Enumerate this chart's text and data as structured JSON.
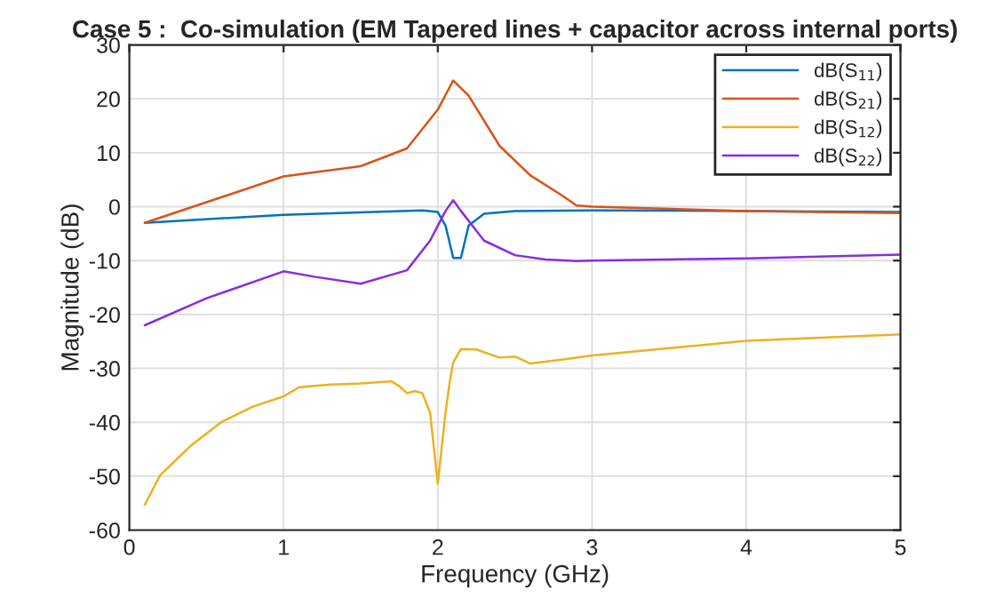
{
  "chart_data": {
    "type": "line",
    "title": "Case 5 :  Co-simulation (EM Tapered lines + capacitor across internal ports)",
    "xlabel": "Frequency (GHz)",
    "ylabel": "Magnitude (dB)",
    "xlim": [
      0,
      5
    ],
    "ylim": [
      -60,
      30
    ],
    "xticks": [
      0,
      1,
      2,
      3,
      4,
      5
    ],
    "yticks": [
      -60,
      -50,
      -40,
      -30,
      -20,
      -10,
      0,
      10,
      20,
      30
    ],
    "grid": true,
    "legend": "top right",
    "series": [
      {
        "name": "dB(S$_{11}$)",
        "color": "#0072bd",
        "x": [
          0.1,
          1,
          1.9,
          2.0,
          2.05,
          2.1,
          2.15,
          2.2,
          2.3,
          2.5,
          3,
          4,
          5
        ],
        "values": [
          -3,
          -1.5,
          -0.7,
          -1,
          -3.5,
          -9.5,
          -9.5,
          -3.5,
          -1.3,
          -0.8,
          -0.7,
          -0.8,
          -1
        ]
      },
      {
        "name": "dB(S$_{21}$)",
        "color": "#d95319",
        "x": [
          0.1,
          1,
          1.5,
          1.8,
          2.0,
          2.1,
          2.2,
          2.4,
          2.6,
          2.8,
          2.9,
          3,
          4,
          5
        ],
        "values": [
          -3,
          5.6,
          7.5,
          10.8,
          18,
          23.4,
          20.6,
          11.3,
          5.8,
          2.2,
          0.2,
          0,
          -0.8,
          -1.2
        ]
      },
      {
        "name": "dB(S$_{12}$)",
        "color": "#edb120",
        "x": [
          0.1,
          0.2,
          0.4,
          0.6,
          0.8,
          1.0,
          1.1,
          1.3,
          1.5,
          1.7,
          1.75,
          1.8,
          1.85,
          1.9,
          1.95,
          2.0,
          2.05,
          2.08,
          2.1,
          2.15,
          2.25,
          2.4,
          2.5,
          2.6,
          2.8,
          3,
          4,
          5
        ],
        "values": [
          -55.3,
          -49.8,
          -44.3,
          -39.9,
          -37.1,
          -35.2,
          -33.5,
          -33,
          -32.8,
          -32.4,
          -33.3,
          -34.6,
          -34.2,
          -34.6,
          -38.2,
          -51.4,
          -38.2,
          -32,
          -28.9,
          -26.4,
          -26.5,
          -28,
          -27.8,
          -29.1,
          -28.4,
          -27.6,
          -24.9,
          -23.7
        ]
      },
      {
        "name": "dB(S$_{22}$)",
        "color": "#8a2be2",
        "x": [
          0.1,
          0.5,
          1,
          1.2,
          1.5,
          1.8,
          1.95,
          2.05,
          2.1,
          2.15,
          2.3,
          2.5,
          2.7,
          2.9,
          3,
          4,
          5
        ],
        "values": [
          -22,
          -17,
          -12,
          -13,
          -14.3,
          -11.8,
          -6.3,
          -0.8,
          1.2,
          -0.8,
          -6.3,
          -9,
          -9.8,
          -10.1,
          -10,
          -9.6,
          -8.9
        ]
      }
    ]
  }
}
